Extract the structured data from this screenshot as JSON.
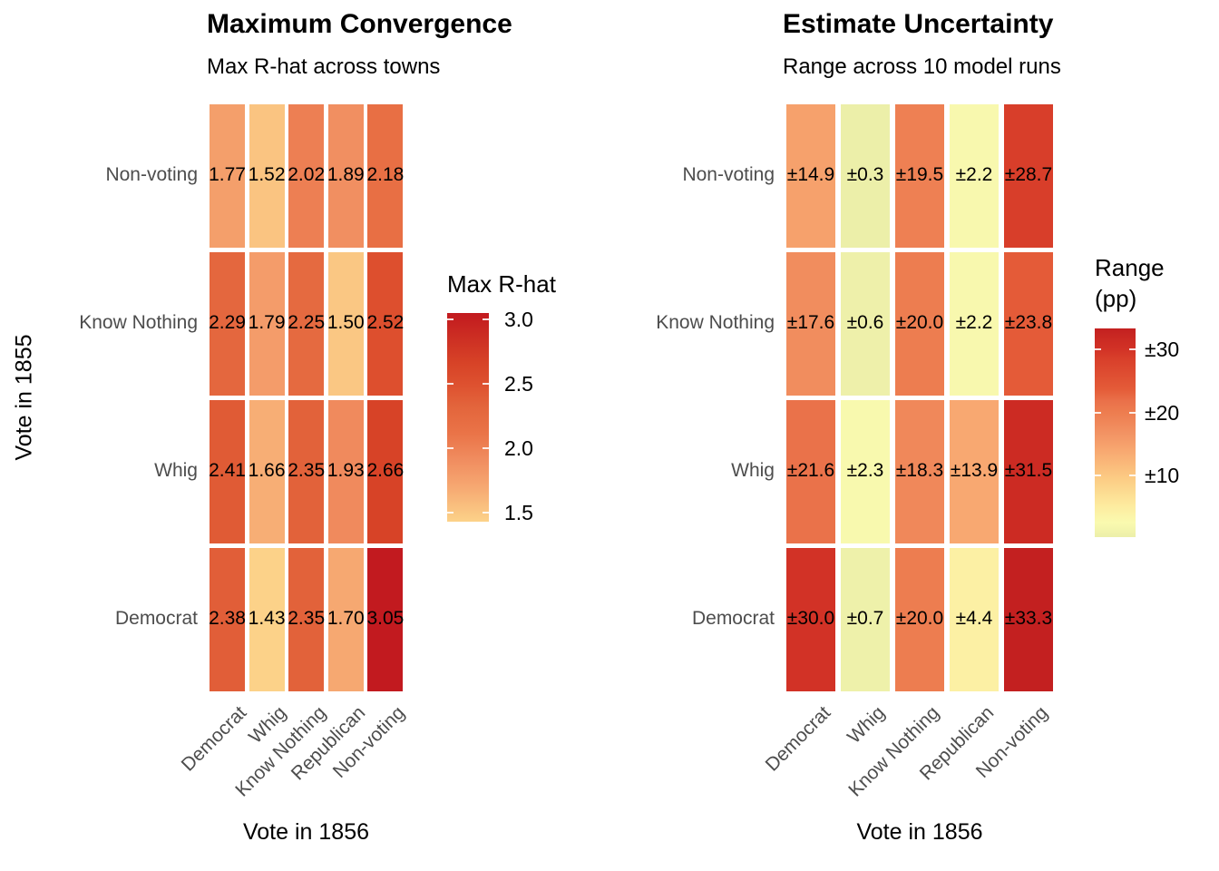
{
  "figure": {
    "background": "#ffffff",
    "axis_text_color": "#4d4d4d",
    "label_text_color": "#000000"
  },
  "chart_data": [
    {
      "type": "heatmap",
      "title": "Maximum Convergence",
      "subtitle": "Max R-hat across towns",
      "xlabel": "Vote in 1856",
      "ylabel": "Vote in 1855",
      "x_categories": [
        "Democrat",
        "Whig",
        "Know Nothing",
        "Republican",
        "Non-voting"
      ],
      "y_categories_top_to_bottom": [
        "Non-voting",
        "Know Nothing",
        "Whig",
        "Democrat"
      ],
      "rows": [
        {
          "y": "Non-voting",
          "values": [
            1.77,
            1.52,
            2.02,
            1.89,
            2.18
          ],
          "labels": [
            "1.77",
            "1.52",
            "2.02",
            "1.89",
            "2.18"
          ]
        },
        {
          "y": "Know Nothing",
          "values": [
            2.29,
            1.79,
            2.25,
            1.5,
            2.52
          ],
          "labels": [
            "2.29",
            "1.79",
            "2.25",
            "1.50",
            "2.52"
          ]
        },
        {
          "y": "Whig",
          "values": [
            2.41,
            1.66,
            2.35,
            1.93,
            2.66
          ],
          "labels": [
            "2.41",
            "1.66",
            "2.35",
            "1.93",
            "2.66"
          ]
        },
        {
          "y": "Democrat",
          "values": [
            2.38,
            1.43,
            2.35,
            1.7,
            3.05
          ],
          "labels": [
            "2.38",
            "1.43",
            "2.35",
            "1.70",
            "3.05"
          ]
        }
      ],
      "legend": {
        "position": "right",
        "title_lines": [
          "Max R-hat"
        ],
        "ticks": [
          {
            "label": "3.0",
            "value": 3.0
          },
          {
            "label": "2.5",
            "value": 2.5
          },
          {
            "label": "2.0",
            "value": 2.0
          },
          {
            "label": "1.5",
            "value": 1.5
          }
        ]
      },
      "color_scale": {
        "domain": [
          1.43,
          3.05
        ],
        "stops": [
          [
            0.0,
            "#FCD289"
          ],
          [
            0.17,
            "#F6A771"
          ],
          [
            0.3,
            "#F08C5F"
          ],
          [
            0.42,
            "#EA7448"
          ],
          [
            0.55,
            "#E3653C"
          ],
          [
            0.65,
            "#DE5230"
          ],
          [
            0.76,
            "#D74327"
          ],
          [
            1.0,
            "#C21A1F"
          ]
        ]
      }
    },
    {
      "type": "heatmap",
      "title": "Estimate Uncertainty",
      "subtitle": "Range across 10 model runs",
      "xlabel": "Vote in 1856",
      "ylabel": "",
      "x_categories": [
        "Democrat",
        "Whig",
        "Know Nothing",
        "Republican",
        "Non-voting"
      ],
      "y_categories_top_to_bottom": [
        "Non-voting",
        "Know Nothing",
        "Whig",
        "Democrat"
      ],
      "rows": [
        {
          "y": "Non-voting",
          "values": [
            14.9,
            0.3,
            19.5,
            2.2,
            28.7
          ],
          "labels": [
            "±14.9",
            "±0.3",
            "±19.5",
            "±2.2",
            "±28.7"
          ]
        },
        {
          "y": "Know Nothing",
          "values": [
            17.6,
            0.6,
            20.0,
            2.2,
            23.8
          ],
          "labels": [
            "±17.6",
            "±0.6",
            "±20.0",
            "±2.2",
            "±23.8"
          ]
        },
        {
          "y": "Whig",
          "values": [
            21.6,
            2.3,
            18.3,
            13.9,
            31.5
          ],
          "labels": [
            "±21.6",
            "±2.3",
            "±18.3",
            "±13.9",
            "±31.5"
          ]
        },
        {
          "y": "Democrat",
          "values": [
            30.0,
            0.7,
            20.0,
            4.4,
            33.3
          ],
          "labels": [
            "±30.0",
            "±0.7",
            "±20.0",
            "±4.4",
            "±33.3"
          ]
        }
      ],
      "legend": {
        "position": "right",
        "title_lines": [
          "Range",
          "(pp)"
        ],
        "ticks": [
          {
            "label": "±30",
            "value": 30
          },
          {
            "label": "±20",
            "value": 20
          },
          {
            "label": "±10",
            "value": 10
          }
        ]
      },
      "color_scale": {
        "domain": [
          0.3,
          33.3
        ],
        "stops": [
          [
            0.0,
            "#ECEFA9"
          ],
          [
            0.07,
            "#FAFAAF"
          ],
          [
            0.15,
            "#FDEB9F"
          ],
          [
            0.28,
            "#FCCC84"
          ],
          [
            0.41,
            "#F8A971"
          ],
          [
            0.5,
            "#F29263"
          ],
          [
            0.6,
            "#ED7C4F"
          ],
          [
            0.65,
            "#EA714A"
          ],
          [
            0.71,
            "#E45B38"
          ],
          [
            0.86,
            "#D83E2A"
          ],
          [
            0.9,
            "#D23226"
          ],
          [
            0.95,
            "#CB2A23"
          ],
          [
            1.0,
            "#C32020"
          ]
        ]
      }
    }
  ]
}
